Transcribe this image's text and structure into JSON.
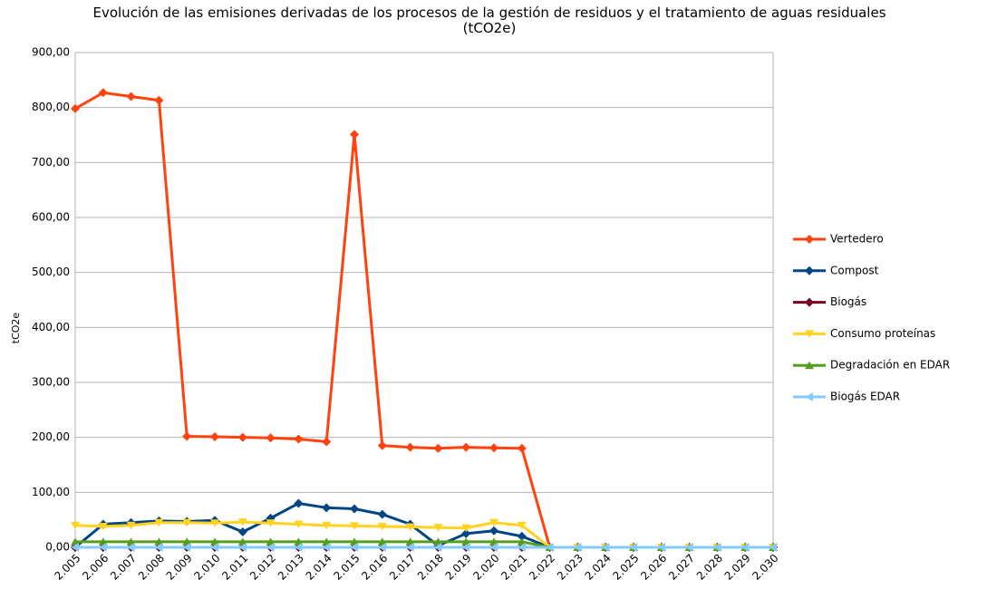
{
  "chart_data": {
    "type": "line",
    "title": "Evolución de las emisiones derivadas de los procesos de la gestión de residuos y el tratamiento de aguas residuales (tCO2e)",
    "y_label": "tCO2e",
    "categories": [
      "2.005",
      "2.006",
      "2.007",
      "2.008",
      "2.009",
      "2.010",
      "2.011",
      "2.012",
      "2.013",
      "2.014",
      "2.015",
      "2.016",
      "2.017",
      "2.018",
      "2.019",
      "2.020",
      "2.021",
      "2.022",
      "2.023",
      "2.024",
      "2.025",
      "2.026",
      "2.027",
      "2.028",
      "2.029",
      "2.030"
    ],
    "series": [
      {
        "name": "Vertedero",
        "color": "#ff420e",
        "marker": "diamond",
        "values": [
          798,
          827,
          820,
          813,
          202,
          201,
          200,
          199,
          197,
          192,
          751,
          185,
          182,
          180,
          182,
          181,
          180,
          0,
          0,
          0,
          0,
          0,
          0,
          0,
          0,
          0
        ]
      },
      {
        "name": "Compost",
        "color": "#004586",
        "marker": "diamond",
        "values": [
          0,
          42,
          45,
          48,
          47,
          49,
          28,
          53,
          80,
          72,
          70,
          60,
          42,
          3,
          25,
          30,
          20,
          0,
          0,
          0,
          0,
          0,
          0,
          0,
          0,
          0
        ]
      },
      {
        "name": "Biogás",
        "color": "#7e0021",
        "marker": "diamond",
        "values": [
          0,
          0,
          0,
          0,
          0,
          0,
          0,
          0,
          0,
          0,
          0,
          0,
          0,
          0,
          0,
          0,
          0,
          0,
          0,
          0,
          0,
          0,
          0,
          0,
          0,
          0
        ]
      },
      {
        "name": "Consumo proteínas",
        "color": "#ffd320",
        "marker": "triangle-down",
        "values": [
          40,
          38,
          40,
          45,
          45,
          44,
          46,
          44,
          42,
          40,
          39,
          38,
          37,
          36,
          35,
          45,
          40,
          0,
          0,
          0,
          0,
          0,
          0,
          0,
          0,
          0
        ]
      },
      {
        "name": "Degradación en EDAR",
        "color": "#579d1c",
        "marker": "triangle-up",
        "values": [
          10,
          10,
          10,
          10,
          10,
          10,
          10,
          10,
          10,
          10,
          10,
          10,
          10,
          10,
          10,
          10,
          10,
          0,
          0,
          0,
          0,
          0,
          0,
          0,
          0,
          0
        ]
      },
      {
        "name": "Biogás EDAR",
        "color": "#83caff",
        "marker": "triangle-left",
        "values": [
          0,
          0,
          0,
          0,
          0,
          0,
          0,
          0,
          0,
          0,
          0,
          0,
          0,
          0,
          0,
          0,
          0,
          0,
          0,
          0,
          0,
          0,
          0,
          0,
          0,
          0
        ]
      }
    ],
    "ylim": [
      0,
      900
    ],
    "yticks": [
      {
        "value": 0,
        "label": "0,00"
      },
      {
        "value": 100,
        "label": "100,00"
      },
      {
        "value": 200,
        "label": "200,00"
      },
      {
        "value": 300,
        "label": "300,00"
      },
      {
        "value": 400,
        "label": "400,00"
      },
      {
        "value": 500,
        "label": "500,00"
      },
      {
        "value": 600,
        "label": "600,00"
      },
      {
        "value": 700,
        "label": "700,00"
      },
      {
        "value": 800,
        "label": "800,00"
      },
      {
        "value": 900,
        "label": "900,00"
      }
    ],
    "grid": true,
    "legend": "right"
  }
}
